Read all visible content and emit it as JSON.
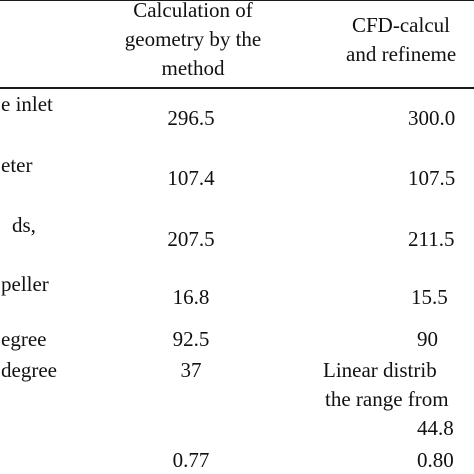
{
  "header": {
    "col2_line1": "Calculation of",
    "col2_line2": "geometry by the",
    "col2_line3": "method",
    "col3_line1": "CFD-calcul",
    "col3_line2": "and refineme"
  },
  "rows": [
    {
      "label": "e inlet",
      "col2": "296.5",
      "col3": "300.0"
    },
    {
      "label": "eter",
      "col2": "107.4",
      "col3": "107.5"
    },
    {
      "label": "ds,",
      "col2": "207.5",
      "col3": "211.5"
    },
    {
      "label": "peller",
      "col2": "16.8",
      "col3": "15.5"
    },
    {
      "label": "egree",
      "col2": "92.5",
      "col3": "90"
    },
    {
      "label": "degree",
      "col2": "37",
      "col3_line1": "Linear distrib",
      "col3_line2": "the range from",
      "col3_line3": "44.8"
    },
    {
      "label": "",
      "col2": "0.77",
      "col3": "0.80"
    }
  ]
}
